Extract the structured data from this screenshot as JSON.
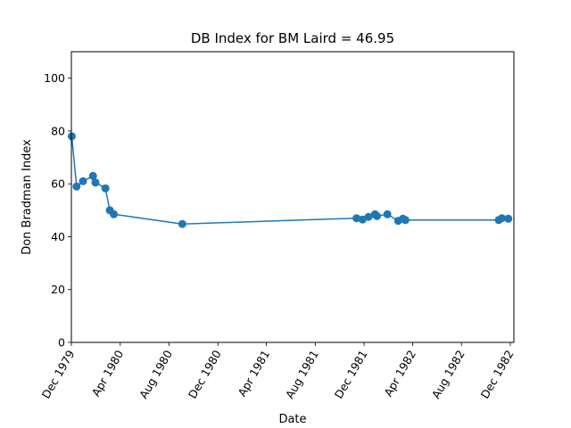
{
  "chart_data": {
    "type": "line",
    "title": "DB Index for BM Laird = 46.95",
    "xlabel": "Date",
    "ylabel": "Don Bradman Index",
    "ylim": [
      0,
      110
    ],
    "xlim": [
      "1979-12-01",
      "1982-12-10"
    ],
    "yticks": [
      0,
      20,
      40,
      60,
      80,
      100
    ],
    "xticks": [
      {
        "date": "1979-12-01",
        "label": "Dec 1979"
      },
      {
        "date": "1980-04-01",
        "label": "Apr 1980"
      },
      {
        "date": "1980-08-01",
        "label": "Aug 1980"
      },
      {
        "date": "1980-12-01",
        "label": "Dec 1980"
      },
      {
        "date": "1981-04-01",
        "label": "Apr 1981"
      },
      {
        "date": "1981-08-01",
        "label": "Aug 1981"
      },
      {
        "date": "1981-12-01",
        "label": "Dec 1981"
      },
      {
        "date": "1982-04-01",
        "label": "Apr 1982"
      },
      {
        "date": "1982-08-01",
        "label": "Aug 1982"
      },
      {
        "date": "1982-12-01",
        "label": "Dec 1982"
      }
    ],
    "grid": false,
    "color": "#1f77b4",
    "series": [
      {
        "points": [
          {
            "x": "1979-12-02",
            "y": 78.0
          },
          {
            "x": "1979-12-14",
            "y": 59.0
          },
          {
            "x": "1979-12-30",
            "y": 61.0
          },
          {
            "x": "1980-01-24",
            "y": 63.0
          },
          {
            "x": "1980-01-30",
            "y": 60.5
          },
          {
            "x": "1980-02-24",
            "y": 58.3
          },
          {
            "x": "1980-03-06",
            "y": 50.0
          },
          {
            "x": "1980-03-16",
            "y": 48.5
          },
          {
            "x": "1980-09-03",
            "y": 44.8
          },
          {
            "x": "1981-11-12",
            "y": 47.0
          },
          {
            "x": "1981-11-27",
            "y": 46.5
          },
          {
            "x": "1981-12-12",
            "y": 47.5
          },
          {
            "x": "1981-12-28",
            "y": 48.5
          },
          {
            "x": "1982-01-02",
            "y": 47.8
          },
          {
            "x": "1982-01-28",
            "y": 48.5
          },
          {
            "x": "1982-02-24",
            "y": 46.0
          },
          {
            "x": "1982-03-08",
            "y": 46.8
          },
          {
            "x": "1982-03-14",
            "y": 46.3
          },
          {
            "x": "1982-11-02",
            "y": 46.3
          },
          {
            "x": "1982-11-10",
            "y": 47.0
          },
          {
            "x": "1982-11-26",
            "y": 46.8
          }
        ]
      }
    ]
  }
}
